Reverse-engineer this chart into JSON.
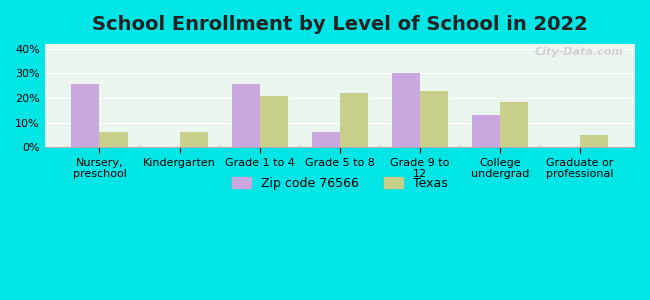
{
  "title": "School Enrollment by Level of School in 2022",
  "categories": [
    "Nursery,\npreschool",
    "Kindergarten",
    "Grade 1 to 4",
    "Grade 5 to 8",
    "Grade 9 to\n12",
    "College\nundergrad",
    "Graduate or\nprofessional"
  ],
  "zip_values": [
    25.5,
    0,
    25.5,
    6.0,
    30.0,
    13.0,
    0
  ],
  "texas_values": [
    6.0,
    6.0,
    21.0,
    22.0,
    23.0,
    18.5,
    5.0
  ],
  "zip_color": "#c9a8e0",
  "texas_color": "#c8cf8a",
  "background_outer": "#00e5e5",
  "background_inner": "#eaf5ee",
  "ylim": [
    0,
    42
  ],
  "yticks": [
    0,
    10,
    20,
    30,
    40
  ],
  "ylabel_format": "%",
  "bar_width": 0.35,
  "legend_zip_label": "Zip code 76566",
  "legend_texas_label": "Texas",
  "title_fontsize": 14,
  "tick_fontsize": 8,
  "legend_fontsize": 9,
  "watermark_text": "City-Data.com"
}
